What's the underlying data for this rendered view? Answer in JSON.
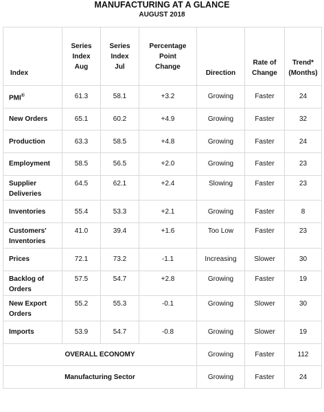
{
  "title": "MANUFACTURING AT A GLANCE",
  "subtitle": "AUGUST 2018",
  "headers": {
    "index": "Index",
    "aug": [
      "Series",
      "Index",
      "Aug"
    ],
    "jul": [
      "Series",
      "Index",
      "Jul"
    ],
    "change": [
      "Percentage",
      "Point",
      "Change"
    ],
    "direction": "Direction",
    "rate": [
      "Rate of",
      "Change"
    ],
    "trend": [
      "Trend*",
      "(Months)"
    ]
  },
  "rows": [
    {
      "index": "PMI",
      "sup": "®",
      "aug": "61.3",
      "jul": "58.1",
      "change": "+3.2",
      "direction": "Growing",
      "rate": "Faster",
      "trend": "24"
    },
    {
      "index": "New Orders",
      "aug": "65.1",
      "jul": "60.2",
      "change": "+4.9",
      "direction": "Growing",
      "rate": "Faster",
      "trend": "32"
    },
    {
      "index": "Production",
      "aug": "63.3",
      "jul": "58.5",
      "change": "+4.8",
      "direction": "Growing",
      "rate": "Faster",
      "trend": "24"
    },
    {
      "index": "Employment",
      "aug": "58.5",
      "jul": "56.5",
      "change": "+2.0",
      "direction": "Growing",
      "rate": "Faster",
      "trend": "23"
    },
    {
      "index": "Supplier Deliveries",
      "aug": "64.5",
      "jul": "62.1",
      "change": "+2.4",
      "direction": "Slowing",
      "rate": "Faster",
      "trend": "23"
    },
    {
      "index": "Inventories",
      "aug": "55.4",
      "jul": "53.3",
      "change": "+2.1",
      "direction": "Growing",
      "rate": "Faster",
      "trend": "8"
    },
    {
      "index": "Customers' Inventories",
      "aug": "41.0",
      "jul": "39.4",
      "change": "+1.6",
      "direction": "Too Low",
      "rate": "Faster",
      "trend": "23"
    },
    {
      "index": "Prices",
      "aug": "72.1",
      "jul": "73.2",
      "change": "-1.1",
      "direction": "Increasing",
      "rate": "Slower",
      "trend": "30"
    },
    {
      "index": "Backlog of Orders",
      "aug": "57.5",
      "jul": "54.7",
      "change": "+2.8",
      "direction": "Growing",
      "rate": "Faster",
      "trend": "19"
    },
    {
      "index": "New Export Orders",
      "aug": "55.2",
      "jul": "55.3",
      "change": "-0.1",
      "direction": "Growing",
      "rate": "Slower",
      "trend": "30"
    },
    {
      "index": "Imports",
      "aug": "53.9",
      "jul": "54.7",
      "change": "-0.8",
      "direction": "Growing",
      "rate": "Slower",
      "trend": "19"
    }
  ],
  "summary": [
    {
      "label": "OVERALL ECONOMY",
      "direction": "Growing",
      "rate": "Faster",
      "trend": "112"
    },
    {
      "label": "Manufacturing Sector",
      "direction": "Growing",
      "rate": "Faster",
      "trend": "24"
    }
  ]
}
